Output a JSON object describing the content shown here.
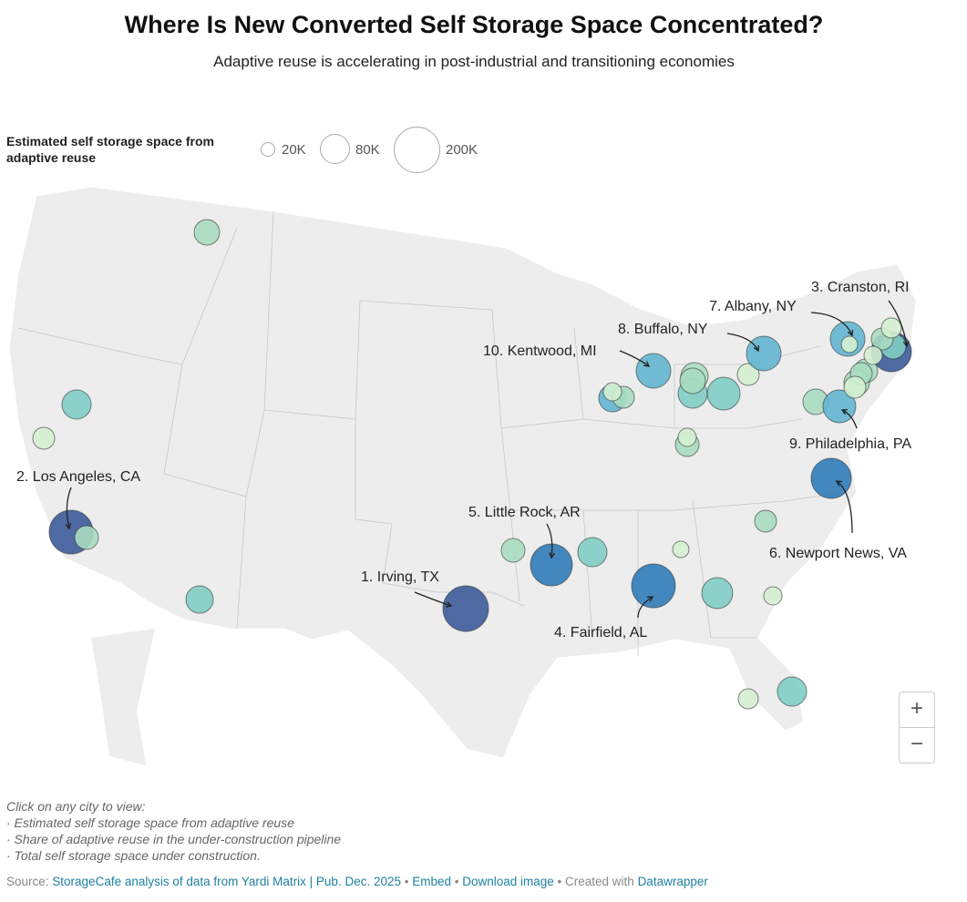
{
  "header": {
    "title": "Where Is New Converted Self Storage Space Concentrated?",
    "subtitle": "Adaptive reuse is accelerating in post-industrial and transitioning economies"
  },
  "legend": {
    "title": "Estimated self storage space from adaptive reuse",
    "sizes": [
      "20K",
      "80K",
      "200K"
    ]
  },
  "colors": {
    "navy": "#3d5a99",
    "blue": "#2f7bb8",
    "teal_blue": "#62b5cf",
    "teal": "#7fcdc4",
    "light_green": "#a8dcc0",
    "pale_green": "#d4efd0",
    "land": "#ededed"
  },
  "cities": [
    {
      "label": "1. Irving, TX"
    },
    {
      "label": "2. Los Angeles, CA"
    },
    {
      "label": "3. Cranston, RI"
    },
    {
      "label": "4. Fairfield, AL"
    },
    {
      "label": "5. Little Rock, AR"
    },
    {
      "label": "6. Newport News, VA"
    },
    {
      "label": "7. Albany, NY"
    },
    {
      "label": "8. Buffalo, NY"
    },
    {
      "label": "9. Philadelphia, PA"
    },
    {
      "label": "10. Kentwood, MI"
    }
  ],
  "notes": {
    "intro": "Click on any city to view:",
    "items": [
      "· Estimated self storage space from adaptive reuse",
      "· Share of adaptive reuse in the under-construction pipeline",
      "· Total self storage space under construction."
    ]
  },
  "source": {
    "prefix": "Source: ",
    "text": "StorageCafe analysis of data from Yardi Matrix | Pub. Dec. 2025",
    "sep1": " • ",
    "embed": "Embed",
    "sep2": "  • ",
    "download": "Download image",
    "sep3": " • Created with ",
    "datawrapper": "Datawrapper"
  },
  "controls": {
    "zoom_in": "+",
    "zoom_out": "−"
  }
}
